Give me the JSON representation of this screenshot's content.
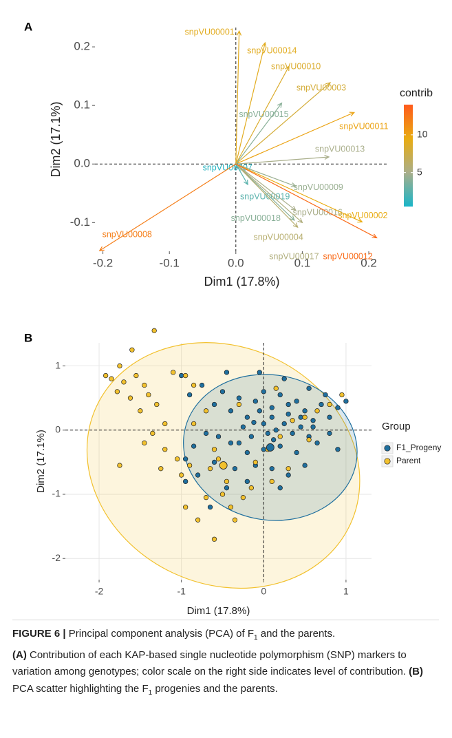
{
  "chart_data": [
    {
      "type": "vector",
      "panel": "A",
      "x_label": "Dim1 (17.8%)",
      "y_label": "Dim2 (17.1%)",
      "labels": [
        "snpVU00001",
        "snpVU00014",
        "snpVU00010",
        "snpVU00003",
        "snpVU00015",
        "snpVU00011",
        "snpVU00013",
        "snpVU00007",
        "snpVU00009",
        "snpVU00019",
        "snpVU00016",
        "snpVU00018",
        "snpVU00002",
        "snpVU00004",
        "snpVU00017",
        "snpVU00012",
        "snpVU00008"
      ],
      "x": [
        0.005,
        0.044,
        0.08,
        0.142,
        0.069,
        0.178,
        0.14,
        0.002,
        0.09,
        0.018,
        0.09,
        0.088,
        0.19,
        0.093,
        0.1,
        0.212,
        -0.205
      ],
      "y": [
        0.227,
        0.207,
        0.167,
        0.139,
        0.104,
        0.088,
        0.012,
        -0.007,
        -0.038,
        -0.035,
        -0.079,
        -0.096,
        -0.099,
        -0.108,
        -0.1,
        -0.126,
        -0.148
      ],
      "contrib": [
        9,
        9,
        8.5,
        8,
        4,
        10,
        5,
        1,
        4.5,
        2.5,
        5,
        4,
        9.5,
        6,
        5.5,
        13,
        12
      ],
      "color_title": "contrib",
      "clim": [
        0.5,
        14
      ],
      "cticks": [
        5,
        10
      ],
      "color_scale": [
        "#1ab5c8",
        "#a9ae8a",
        "#e9ac12",
        "#ff5a1c"
      ],
      "xlim": [
        -0.212,
        0.23
      ],
      "xticks": [
        -0.2,
        -0.1,
        {
          "value": 0,
          "label": "0.0"
        },
        0.1,
        0.2
      ],
      "ylim": [
        -0.149,
        0.233
      ],
      "yticks": [
        0.2,
        0.1,
        {
          "value": 0,
          "label": "0.0"
        },
        -0.1
      ],
      "zero_lines": true,
      "grid": false
    },
    {
      "type": "scatter",
      "panel": "B",
      "x_label": "Dim1 (17.8%)",
      "y_label": "Dim2 (17.1%)",
      "legend_title": "Group",
      "series": [
        {
          "name": "F1_Progeny",
          "color": "#1f6f9e",
          "x": [
            -1.0,
            -0.75,
            -0.9,
            -0.6,
            -0.5,
            -0.4,
            -0.3,
            -0.2,
            -0.1,
            0.0,
            0.1,
            0.2,
            0.3,
            0.4,
            0.5,
            0.6,
            0.7,
            0.8,
            0.9,
            1.0,
            0.75,
            0.55,
            0.25,
            -0.05,
            -0.45,
            -0.25,
            -0.15,
            0.0,
            0.05,
            0.15,
            0.25,
            0.35,
            0.45,
            0.55,
            0.65,
            0.8,
            0.9,
            0.4,
            0.2,
            0.0,
            -0.2,
            -0.4,
            -0.55,
            -0.7,
            -0.85,
            -0.95,
            -0.6,
            -0.35,
            -0.1,
            0.1,
            0.3,
            0.5,
            0.2,
            -0.2,
            -0.45,
            -0.8,
            -0.65,
            -0.95,
            0.1,
            -0.05,
            0.3,
            0.45,
            -0.3,
            0.6,
            0.12,
            -0.12
          ],
          "y": [
            0.85,
            0.7,
            0.55,
            0.4,
            0.6,
            0.3,
            0.5,
            0.2,
            0.45,
            0.6,
            0.35,
            0.55,
            0.25,
            0.45,
            0.3,
            0.15,
            0.4,
            0.2,
            0.35,
            0.45,
            0.55,
            0.65,
            0.8,
            0.9,
            0.9,
            0.05,
            -0.1,
            0.1,
            -0.05,
            0.0,
            0.1,
            -0.05,
            0.05,
            -0.1,
            -0.2,
            -0.05,
            -0.3,
            -0.35,
            -0.25,
            -0.3,
            -0.35,
            -0.2,
            -0.1,
            -0.05,
            -0.25,
            -0.45,
            -0.5,
            -0.6,
            -0.55,
            -0.6,
            -0.7,
            -0.55,
            -0.9,
            -0.8,
            -0.9,
            -0.7,
            -1.2,
            -0.8,
            0.2,
            0.3,
            0.4,
            0.2,
            -0.2,
            0.05,
            -0.15,
            0.12
          ]
        },
        {
          "name": "Parent",
          "color": "#f2c12e",
          "x": [
            -1.33,
            -1.6,
            -1.75,
            -1.92,
            -1.85,
            -1.7,
            -1.55,
            -1.45,
            -1.78,
            -1.62,
            -1.4,
            -1.3,
            -1.5,
            -1.2,
            -1.35,
            -1.45,
            -1.2,
            -1.05,
            -1.25,
            -1.0,
            -0.9,
            -0.85,
            -0.7,
            -0.6,
            -0.55,
            -0.65,
            -0.45,
            -0.5,
            -0.4,
            -0.25,
            -0.35,
            -0.6,
            -0.8,
            -0.15,
            -0.1,
            0.05,
            0.2,
            0.35,
            0.5,
            0.65,
            0.8,
            0.95,
            0.3,
            0.1,
            -1.1,
            -0.95,
            -0.7,
            -0.95,
            0.55,
            -1.75,
            -0.85,
            -0.3,
            0.15
          ],
          "y": [
            1.55,
            1.25,
            1.0,
            0.85,
            0.8,
            0.75,
            0.85,
            0.7,
            0.6,
            0.5,
            0.55,
            0.4,
            0.3,
            0.1,
            -0.05,
            -0.2,
            -0.3,
            -0.45,
            -0.6,
            -0.7,
            -0.55,
            0.1,
            0.3,
            -0.3,
            -0.45,
            -0.6,
            -0.8,
            -1.0,
            -1.2,
            -1.05,
            -1.4,
            -1.7,
            -1.4,
            -0.9,
            -0.5,
            -0.3,
            -0.1,
            0.15,
            0.2,
            0.3,
            0.4,
            0.55,
            -0.6,
            -0.8,
            0.9,
            0.85,
            -1.05,
            -1.2,
            -0.15,
            -0.55,
            0.7,
            0.4,
            0.65
          ]
        }
      ],
      "ellipses": [
        {
          "group": "Parent",
          "cx": -0.49,
          "cy": -0.55,
          "rx": 1.7,
          "ry": 1.85,
          "angle": 25
        },
        {
          "group": "F1_Progeny",
          "cx": 0.08,
          "cy": -0.27,
          "rx": 1.06,
          "ry": 1.13,
          "angle": 10
        }
      ],
      "xlim": [
        -2.41,
        1.31
      ],
      "xticks": [
        -2,
        -1,
        0,
        1
      ],
      "ylim": [
        -2.33,
        1.36
      ],
      "yticks": [
        1,
        0,
        -1,
        -2
      ],
      "zero_lines": true,
      "grid": true
    }
  ],
  "caption": {
    "label": "FIGURE 6 |",
    "title": [
      " Principal component analysis (PCA) of F",
      "1",
      " and the parents."
    ],
    "a_label": "(A)",
    "a_text": " Contribution of each KAP-based single nucleotide polymorphism (SNP) markers to variation among genotypes; color scale on the right side indicates level of contribution. ",
    "b_label": "(B)",
    "b_text": [
      " PCA scatter highlighting the F",
      "1",
      " progenies and the parents."
    ]
  }
}
